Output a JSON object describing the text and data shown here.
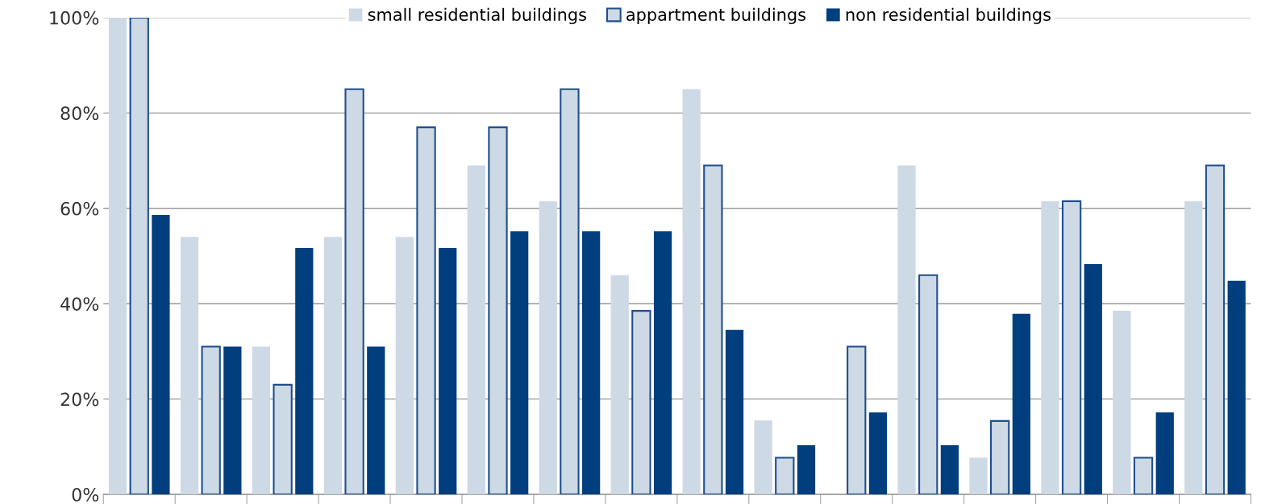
{
  "chart_data": {
    "type": "bar",
    "categories": [
      null,
      null,
      null,
      null,
      null,
      null,
      null,
      null,
      null,
      null,
      null,
      null,
      null,
      null,
      null,
      null
    ],
    "series": [
      {
        "name": "small residential buildings",
        "color": "#cdd9e4",
        "values": [
          100,
          54,
          31,
          54,
          54,
          69,
          61.5,
          46,
          85,
          15.5,
          0,
          69,
          7.7,
          61.5,
          38.5,
          61.5
        ]
      },
      {
        "name": "appartment buildings",
        "color": "#cdd9e4",
        "values": [
          100,
          31,
          23,
          85,
          77,
          77,
          85,
          38.5,
          69,
          7.7,
          31,
          46,
          15.4,
          61.5,
          7.7,
          69
        ]
      },
      {
        "name": "non residential buildings",
        "color": "#003e7e",
        "values": [
          58.6,
          31,
          51.7,
          31,
          51.7,
          55.2,
          55.2,
          55.2,
          34.5,
          10.3,
          17.2,
          10.3,
          37.9,
          48.3,
          17.2,
          44.8
        ]
      }
    ],
    "ylim": [
      0,
      100
    ],
    "yticks": [
      {
        "value": 0,
        "label": "0%"
      },
      {
        "value": 20,
        "label": "20%"
      },
      {
        "value": 40,
        "label": "40%"
      },
      {
        "value": 60,
        "label": "60%"
      },
      {
        "value": 80,
        "label": "80%"
      },
      {
        "value": 100,
        "label": "100%"
      }
    ],
    "grid": "y",
    "legend": "top"
  }
}
